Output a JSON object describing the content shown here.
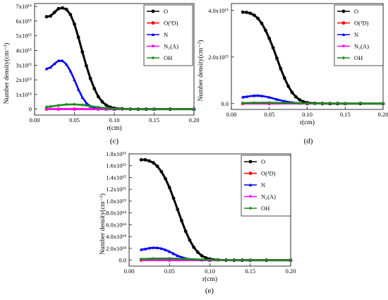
{
  "colors": {
    "O": "#000000",
    "O1D": "#ff0000",
    "N": "#0000ff",
    "N2A": "#ff00ff",
    "OH": "#1f8a1f"
  },
  "chart_data": [
    {
      "type": "line",
      "panel": "(c)",
      "xlabel": "r(cm)",
      "ylabel": "Number density(cm⁻³)",
      "xlim": [
        0,
        0.2
      ],
      "ylim": [
        -400000000000000.0,
        7200000000000000.0
      ],
      "xticks": [
        {
          "v": 0.0,
          "label": "0.00"
        },
        {
          "v": 0.05,
          "label": "0.05"
        },
        {
          "v": 0.1,
          "label": "0.10"
        },
        {
          "v": 0.15,
          "label": "0.15"
        },
        {
          "v": 0.2,
          "label": "0.20"
        }
      ],
      "yticks": [
        {
          "v": 0,
          "label": "0"
        },
        {
          "v": 1000000000000000.0,
          "label": "1x10¹⁵"
        },
        {
          "v": 2000000000000000.0,
          "label": "2x10¹⁵"
        },
        {
          "v": 3000000000000000.0,
          "label": "3x10¹⁵"
        },
        {
          "v": 4000000000000000.0,
          "label": "4x10¹⁵"
        },
        {
          "v": 5000000000000000.0,
          "label": "5x10¹⁵"
        },
        {
          "v": 6000000000000000.0,
          "label": "6x10¹⁵"
        },
        {
          "v": 7000000000000000.0,
          "label": "7x10¹⁵"
        }
      ],
      "legend_position": "top-right",
      "series": [
        {
          "key": "O",
          "name": "O",
          "marker": "circle",
          "x": [
            0.015,
            0.02,
            0.025,
            0.03,
            0.035,
            0.04,
            0.045,
            0.05,
            0.055,
            0.06,
            0.065,
            0.07,
            0.075,
            0.08,
            0.085,
            0.09,
            0.095,
            0.1,
            0.11,
            0.12,
            0.13,
            0.14,
            0.15,
            0.17,
            0.2
          ],
          "y": [
            6300000000000000.0,
            6350000000000000.0,
            6600000000000000.0,
            6850000000000000.0,
            6900000000000000.0,
            6800000000000000.0,
            6450000000000000.0,
            5800000000000000.0,
            4900000000000000.0,
            3900000000000000.0,
            2950000000000000.0,
            2100000000000000.0,
            1400000000000000.0,
            850000000000000.0,
            500000000000000.0,
            270000000000000.0,
            140000000000000.0,
            70000000000000.0,
            20000000000000.0,
            5000000000000.0,
            0,
            0,
            0,
            0,
            0
          ]
        },
        {
          "key": "O1D",
          "name": "O(¹D)",
          "marker": "circle",
          "x": [
            0.015,
            0.03,
            0.05,
            0.08,
            0.1,
            0.15,
            0.2
          ],
          "y": [
            5000000000000.0,
            6000000000000.0,
            5000000000000.0,
            2000000000000.0,
            0,
            0,
            0
          ]
        },
        {
          "key": "N",
          "name": "N",
          "marker": "triangle-up",
          "x": [
            0.015,
            0.02,
            0.025,
            0.03,
            0.035,
            0.04,
            0.045,
            0.05,
            0.055,
            0.06,
            0.065,
            0.07,
            0.075,
            0.08,
            0.09,
            0.1,
            0.15,
            0.2
          ],
          "y": [
            2750000000000000.0,
            2850000000000000.0,
            3100000000000000.0,
            3300000000000000.0,
            3300000000000000.0,
            3050000000000000.0,
            2600000000000000.0,
            2000000000000000.0,
            1350000000000000.0,
            800000000000000.0,
            420000000000000.0,
            190000000000000.0,
            80000000000000.0,
            30000000000000.0,
            5000000000000.0,
            0,
            0,
            0
          ]
        },
        {
          "key": "N2A",
          "name": "N₂(A)",
          "marker": "triangle-down",
          "x": [
            0.015,
            0.03,
            0.05,
            0.08,
            0.1,
            0.15,
            0.2
          ],
          "y": [
            10000000000000.0,
            12000000000000.0,
            10000000000000.0,
            4000000000000.0,
            0,
            0,
            0
          ]
        },
        {
          "key": "OH",
          "name": "OH",
          "marker": "diamond",
          "x": [
            0.015,
            0.02,
            0.03,
            0.04,
            0.05,
            0.06,
            0.07,
            0.08,
            0.09,
            0.1,
            0.12,
            0.15,
            0.2
          ],
          "y": [
            150000000000000.0,
            180000000000000.0,
            260000000000000.0,
            320000000000000.0,
            330000000000000.0,
            290000000000000.0,
            210000000000000.0,
            130000000000000.0,
            70000000000000.0,
            30000000000000.0,
            5000000000000.0,
            0,
            0
          ]
        }
      ]
    },
    {
      "type": "line",
      "panel": "(d)",
      "xlabel": "r(cm)",
      "ylabel": "Number density(cm⁻³)",
      "xlim": [
        0,
        0.2
      ],
      "ylim": [
        -250000000000000.0,
        4300000000000000.0
      ],
      "xticks": [
        {
          "v": 0.0,
          "label": "0.00"
        },
        {
          "v": 0.05,
          "label": "0.05"
        },
        {
          "v": 0.1,
          "label": "0.10"
        },
        {
          "v": 0.15,
          "label": "0.15"
        },
        {
          "v": 0.2,
          "label": "0.20"
        }
      ],
      "yticks": [
        {
          "v": 0,
          "label": "0.0"
        },
        {
          "v": 2000000000000000.0,
          "label": "2.0x10¹⁵"
        },
        {
          "v": 4000000000000000.0,
          "label": "4.0x10¹⁵"
        }
      ],
      "legend_position": "top-right",
      "series": [
        {
          "key": "O",
          "name": "O",
          "marker": "circle",
          "x": [
            0.015,
            0.02,
            0.025,
            0.03,
            0.035,
            0.04,
            0.045,
            0.05,
            0.055,
            0.06,
            0.065,
            0.07,
            0.075,
            0.08,
            0.085,
            0.09,
            0.095,
            0.1,
            0.11,
            0.12,
            0.13,
            0.14,
            0.15,
            0.17,
            0.2
          ],
          "y": [
            3930000000000000.0,
            3920000000000000.0,
            3880000000000000.0,
            3800000000000000.0,
            3660000000000000.0,
            3450000000000000.0,
            3150000000000000.0,
            2800000000000000.0,
            2400000000000000.0,
            1950000000000000.0,
            1500000000000000.0,
            1100000000000000.0,
            750000000000000.0,
            480000000000000.0,
            290000000000000.0,
            160000000000000.0,
            80000000000000.0,
            40000000000000.0,
            10000000000000.0,
            3000000000000.0,
            0,
            0,
            0,
            0,
            0
          ]
        },
        {
          "key": "O1D",
          "name": "O(¹D)",
          "marker": "circle",
          "x": [
            0.015,
            0.05,
            0.1,
            0.15,
            0.2
          ],
          "y": [
            3000000000000.0,
            3000000000000.0,
            0,
            0,
            0
          ]
        },
        {
          "key": "N",
          "name": "N",
          "marker": "triangle-up",
          "x": [
            0.015,
            0.02,
            0.03,
            0.035,
            0.04,
            0.05,
            0.06,
            0.07,
            0.08,
            0.09,
            0.1,
            0.15,
            0.2
          ],
          "y": [
            280000000000000.0,
            300000000000000.0,
            340000000000000.0,
            345000000000000.0,
            330000000000000.0,
            270000000000000.0,
            180000000000000.0,
            100000000000000.0,
            45000000000000.0,
            15000000000000.0,
            3000000000000.0,
            0,
            0
          ]
        },
        {
          "key": "N2A",
          "name": "N₂(A)",
          "marker": "triangle-down",
          "x": [
            0.015,
            0.05,
            0.1,
            0.15,
            0.2
          ],
          "y": [
            4000000000000.0,
            4000000000000.0,
            0,
            0,
            0
          ]
        },
        {
          "key": "OH",
          "name": "OH",
          "marker": "diamond",
          "x": [
            0.015,
            0.03,
            0.05,
            0.07,
            0.09,
            0.11,
            0.15,
            0.2
          ],
          "y": [
            25000000000000.0,
            35000000000000.0,
            40000000000000.0,
            30000000000000.0,
            15000000000000.0,
            5000000000000.0,
            0,
            0
          ]
        }
      ]
    },
    {
      "type": "line",
      "panel": "(e)",
      "xlabel": "r(cm)",
      "ylabel": "Number density(cm⁻³)",
      "xlim": [
        0,
        0.2
      ],
      "ylim": [
        -100000000000000.0,
        1800000000000000.0
      ],
      "xticks": [
        {
          "v": 0.0,
          "label": "0.00"
        },
        {
          "v": 0.05,
          "label": "0.05"
        },
        {
          "v": 0.1,
          "label": "0.10"
        },
        {
          "v": 0.15,
          "label": "0.15"
        },
        {
          "v": 0.2,
          "label": "0.20"
        }
      ],
      "yticks": [
        {
          "v": 0,
          "label": "0.0"
        },
        {
          "v": 200000000000000.0,
          "label": "2.0x10¹⁴"
        },
        {
          "v": 400000000000000.0,
          "label": "4.0x10¹⁴"
        },
        {
          "v": 600000000000000.0,
          "label": "6.0x10¹⁴"
        },
        {
          "v": 800000000000000.0,
          "label": "8.0x10¹⁴"
        },
        {
          "v": 1000000000000000.0,
          "label": "1.0x10¹⁵"
        },
        {
          "v": 1200000000000000.0,
          "label": "1.2x10¹⁵"
        },
        {
          "v": 1400000000000000.0,
          "label": "1.4x10¹⁵"
        },
        {
          "v": 1600000000000000.0,
          "label": "1.6x10¹⁵"
        },
        {
          "v": 1800000000000000.0,
          "label": "1.8x10¹⁵"
        }
      ],
      "legend_position": "top-right",
      "series": [
        {
          "key": "O",
          "name": "O",
          "marker": "circle",
          "x": [
            0.015,
            0.02,
            0.025,
            0.03,
            0.035,
            0.04,
            0.045,
            0.05,
            0.055,
            0.06,
            0.065,
            0.07,
            0.075,
            0.08,
            0.085,
            0.09,
            0.095,
            0.1,
            0.11,
            0.12,
            0.13,
            0.14,
            0.15,
            0.17,
            0.2
          ],
          "y": [
            1700000000000000.0,
            1700000000000000.0,
            1680000000000000.0,
            1650000000000000.0,
            1590000000000000.0,
            1500000000000000.0,
            1380000000000000.0,
            1230000000000000.0,
            1050000000000000.0,
            860000000000000.0,
            670000000000000.0,
            490000000000000.0,
            340000000000000.0,
            220000000000000.0,
            135000000000000.0,
            75000000000000.0,
            40000000000000.0,
            20000000000000.0,
            5000000000000.0,
            1000000000000.0,
            0,
            0,
            0,
            0,
            0
          ]
        },
        {
          "key": "O1D",
          "name": "O(¹D)",
          "marker": "circle",
          "x": [
            0.015,
            0.05,
            0.1,
            0.15,
            0.2
          ],
          "y": [
            2000000000000.0,
            2000000000000.0,
            0,
            0,
            0
          ]
        },
        {
          "key": "N",
          "name": "N",
          "marker": "triangle-up",
          "x": [
            0.015,
            0.02,
            0.025,
            0.03,
            0.035,
            0.04,
            0.045,
            0.05,
            0.055,
            0.06,
            0.07,
            0.08,
            0.09,
            0.1,
            0.15,
            0.2
          ],
          "y": [
            180000000000000.0,
            190000000000000.0,
            205000000000000.0,
            212000000000000.0,
            210000000000000.0,
            197000000000000.0,
            175000000000000.0,
            145000000000000.0,
            110000000000000.0,
            75000000000000.0,
            30000000000000.0,
            10000000000000.0,
            3000000000000.0,
            0,
            0,
            0
          ]
        },
        {
          "key": "N2A",
          "name": "N₂(A)",
          "marker": "triangle-down",
          "x": [
            0.015,
            0.05,
            0.1,
            0.15,
            0.2
          ],
          "y": [
            3000000000000.0,
            3000000000000.0,
            0,
            0,
            0
          ]
        },
        {
          "key": "OH",
          "name": "OH",
          "marker": "diamond",
          "x": [
            0.015,
            0.03,
            0.05,
            0.07,
            0.09,
            0.11,
            0.15,
            0.2
          ],
          "y": [
            20000000000000.0,
            28000000000000.0,
            30000000000000.0,
            22000000000000.0,
            10000000000000.0,
            3000000000000.0,
            0,
            0
          ]
        }
      ]
    }
  ]
}
